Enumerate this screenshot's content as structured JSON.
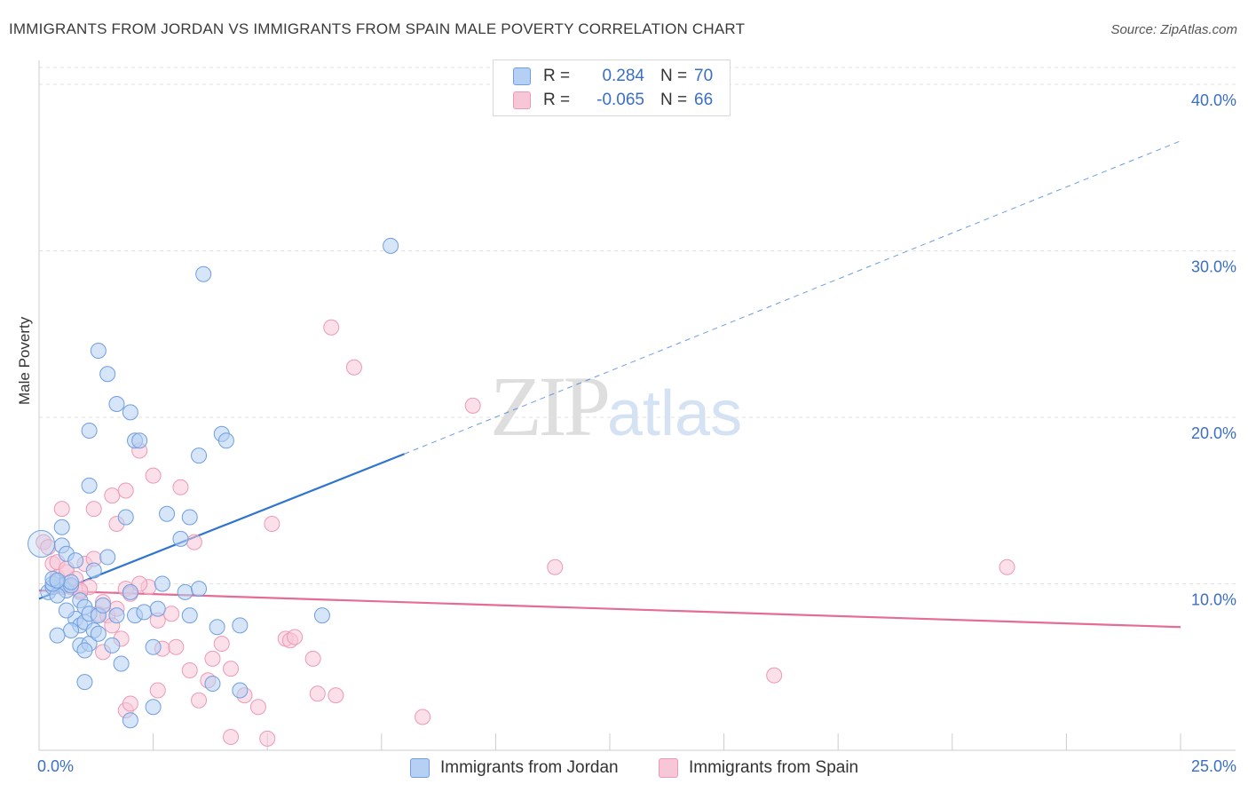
{
  "title": "IMMIGRANTS FROM JORDAN VS IMMIGRANTS FROM SPAIN MALE POVERTY CORRELATION CHART",
  "source": "Source: ZipAtlas.com",
  "watermark": {
    "zip": "ZIP",
    "atlas": "atlas"
  },
  "legend": {
    "jordan": {
      "r_label": "R =",
      "r_value": "0.284",
      "n_label": "N =",
      "n_value": "70"
    },
    "spain": {
      "r_label": "R =",
      "r_value": "-0.065",
      "n_label": "N =",
      "n_value": "66"
    }
  },
  "colors": {
    "jordan_fill": "#b5d0f3",
    "jordan_stroke": "#6f9fe0",
    "jordan_line": "#2e74d0",
    "spain_fill": "#f8c7d7",
    "spain_stroke": "#ec9ab6",
    "spain_line": "#e46c95",
    "grid": "#e2e2e2",
    "tick_text": "#3a6fc4"
  },
  "chart_data": {
    "type": "scatter",
    "title": "IMMIGRANTS FROM JORDAN VS IMMIGRANTS FROM SPAIN MALE POVERTY CORRELATION CHART",
    "xlabel": "",
    "ylabel": "Male Poverty",
    "xlim": [
      0,
      25
    ],
    "ylim": [
      0,
      40.8
    ],
    "x_tick_labels": [
      "0.0%",
      "25.0%"
    ],
    "y_ticks": [
      10,
      20,
      30,
      40
    ],
    "y_tick_labels": [
      "10.0%",
      "20.0%",
      "30.0%",
      "40.0%"
    ],
    "legend": [
      "Immigrants from Jordan",
      "Immigrants from Spain"
    ],
    "series": [
      {
        "name": "Immigrants from Jordan",
        "points": [
          [
            0.2,
            9.5
          ],
          [
            0.3,
            9.8
          ],
          [
            0.4,
            10.1
          ],
          [
            0.5,
            9.9
          ],
          [
            0.6,
            9.6
          ],
          [
            0.7,
            9.9
          ],
          [
            0.8,
            7.9
          ],
          [
            0.9,
            7.5
          ],
          [
            1.0,
            7.7
          ],
          [
            0.4,
            9.3
          ],
          [
            0.3,
            10.0
          ],
          [
            0.5,
            12.3
          ],
          [
            0.6,
            11.8
          ],
          [
            0.7,
            10.1
          ],
          [
            0.8,
            11.4
          ],
          [
            0.9,
            9.0
          ],
          [
            1.0,
            8.6
          ],
          [
            1.1,
            8.2
          ],
          [
            1.2,
            7.2
          ],
          [
            1.3,
            8.1
          ],
          [
            0.5,
            13.4
          ],
          [
            0.3,
            10.3
          ],
          [
            0.4,
            10.2
          ],
          [
            0.6,
            8.4
          ],
          [
            0.7,
            7.2
          ],
          [
            0.9,
            6.3
          ],
          [
            1.1,
            6.4
          ],
          [
            1.3,
            7.0
          ],
          [
            0.4,
            6.9
          ],
          [
            1.0,
            6.0
          ],
          [
            1.2,
            10.8
          ],
          [
            1.4,
            8.7
          ],
          [
            1.5,
            11.6
          ],
          [
            1.6,
            6.3
          ],
          [
            1.8,
            5.2
          ],
          [
            1.9,
            14.0
          ],
          [
            2.0,
            9.5
          ],
          [
            2.1,
            8.1
          ],
          [
            1.7,
            8.1
          ],
          [
            1.0,
            4.1
          ],
          [
            1.1,
            15.9
          ],
          [
            1.1,
            19.2
          ],
          [
            1.3,
            24.0
          ],
          [
            1.5,
            22.6
          ],
          [
            1.7,
            20.8
          ],
          [
            2.0,
            20.3
          ],
          [
            2.1,
            18.6
          ],
          [
            2.2,
            18.6
          ],
          [
            2.3,
            8.3
          ],
          [
            2.5,
            6.2
          ],
          [
            2.5,
            2.6
          ],
          [
            2.6,
            8.5
          ],
          [
            2.7,
            10.0
          ],
          [
            2.8,
            14.2
          ],
          [
            3.1,
            12.7
          ],
          [
            3.2,
            9.5
          ],
          [
            3.3,
            8.1
          ],
          [
            3.3,
            14.0
          ],
          [
            3.5,
            9.7
          ],
          [
            3.5,
            17.7
          ],
          [
            3.6,
            28.6
          ],
          [
            3.8,
            4.0
          ],
          [
            3.9,
            7.4
          ],
          [
            4.0,
            19.0
          ],
          [
            4.1,
            18.6
          ],
          [
            4.4,
            3.6
          ],
          [
            4.4,
            7.5
          ],
          [
            6.2,
            8.1
          ],
          [
            7.7,
            30.3
          ],
          [
            2.0,
            1.8
          ]
        ],
        "trend": {
          "x": [
            0,
            8.0
          ],
          "y": [
            9.1,
            17.8
          ],
          "dashed_extension": {
            "x": [
              8.0,
              25.0
            ],
            "y": [
              17.8,
              36.6
            ]
          }
        }
      },
      {
        "name": "Immigrants from Spain",
        "points": [
          [
            0.1,
            12.5
          ],
          [
            0.2,
            12.2
          ],
          [
            0.3,
            11.2
          ],
          [
            0.4,
            10.4
          ],
          [
            0.5,
            9.8
          ],
          [
            0.6,
            10.7
          ],
          [
            0.7,
            9.8
          ],
          [
            0.8,
            10.3
          ],
          [
            0.9,
            9.5
          ],
          [
            1.0,
            11.2
          ],
          [
            1.1,
            9.8
          ],
          [
            1.2,
            11.5
          ],
          [
            1.3,
            8.2
          ],
          [
            1.4,
            8.9
          ],
          [
            1.5,
            8.1
          ],
          [
            1.6,
            7.5
          ],
          [
            1.7,
            8.5
          ],
          [
            1.8,
            6.7
          ],
          [
            1.9,
            9.7
          ],
          [
            2.0,
            9.4
          ],
          [
            0.5,
            14.5
          ],
          [
            1.2,
            14.5
          ],
          [
            1.6,
            15.3
          ],
          [
            1.7,
            13.6
          ],
          [
            1.9,
            15.6
          ],
          [
            2.2,
            18.0
          ],
          [
            2.4,
            9.8
          ],
          [
            2.5,
            16.5
          ],
          [
            2.6,
            7.8
          ],
          [
            2.7,
            6.1
          ],
          [
            2.9,
            8.2
          ],
          [
            3.0,
            6.2
          ],
          [
            3.1,
            15.8
          ],
          [
            3.3,
            4.8
          ],
          [
            3.4,
            12.5
          ],
          [
            3.5,
            3.0
          ],
          [
            3.7,
            4.2
          ],
          [
            3.8,
            5.5
          ],
          [
            4.0,
            6.4
          ],
          [
            4.2,
            4.9
          ],
          [
            4.2,
            0.8
          ],
          [
            4.5,
            3.3
          ],
          [
            4.8,
            2.6
          ],
          [
            5.0,
            0.7
          ],
          [
            5.1,
            13.6
          ],
          [
            5.4,
            6.7
          ],
          [
            5.5,
            6.6
          ],
          [
            5.6,
            6.8
          ],
          [
            6.0,
            5.5
          ],
          [
            6.1,
            3.4
          ],
          [
            6.4,
            25.4
          ],
          [
            6.5,
            3.3
          ],
          [
            6.9,
            23.0
          ],
          [
            8.4,
            2.0
          ],
          [
            9.5,
            20.7
          ],
          [
            11.3,
            11.0
          ],
          [
            16.1,
            4.5
          ],
          [
            21.2,
            11.0
          ],
          [
            0.4,
            11.3
          ],
          [
            0.6,
            10.9
          ],
          [
            0.9,
            9.6
          ],
          [
            1.4,
            5.9
          ],
          [
            2.2,
            10.0
          ],
          [
            2.6,
            3.6
          ],
          [
            1.9,
            2.4
          ],
          [
            2.0,
            2.8
          ]
        ],
        "trend": {
          "x": [
            0,
            25.0
          ],
          "y": [
            9.6,
            7.4
          ]
        }
      }
    ]
  }
}
